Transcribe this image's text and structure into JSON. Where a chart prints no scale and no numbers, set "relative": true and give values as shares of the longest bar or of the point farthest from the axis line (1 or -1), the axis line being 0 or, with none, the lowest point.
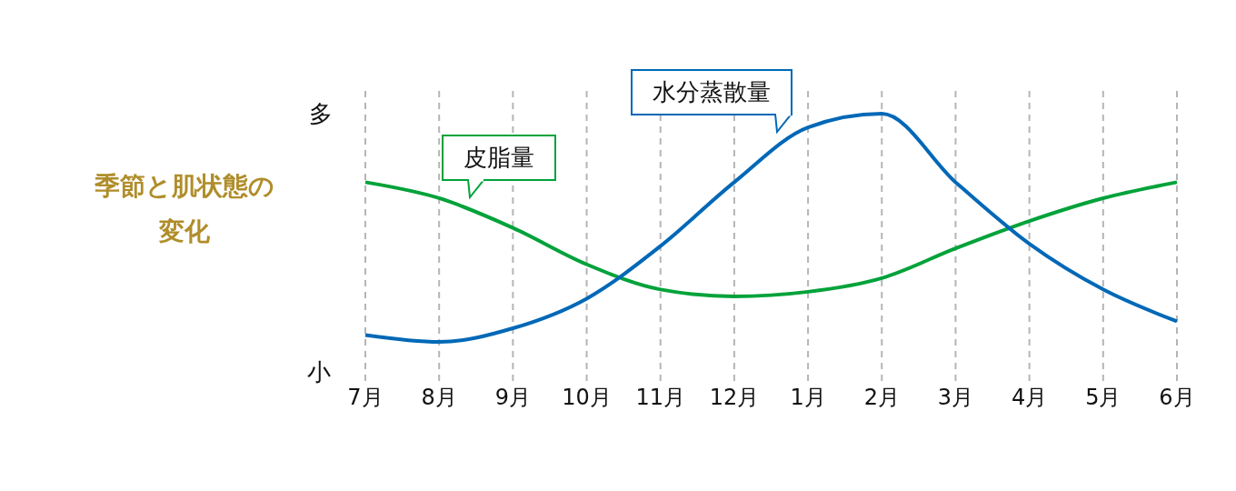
{
  "chart_data": {
    "type": "line",
    "title": "季節と肌状態の変化",
    "relative": true,
    "categories": [
      "7月",
      "8月",
      "9月",
      "10月",
      "11月",
      "12月",
      "1月",
      "2月",
      "3月",
      "4月",
      "5月",
      "6月"
    ],
    "series": [
      {
        "name": "皮脂量",
        "color": "#00a23a",
        "values": [
          0.7,
          0.63,
          0.5,
          0.34,
          0.23,
          0.2,
          0.22,
          0.28,
          0.41,
          0.53,
          0.63,
          0.7
        ]
      },
      {
        "name": "水分蒸散量",
        "color": "#0068b7",
        "values": [
          0.03,
          0,
          0.06,
          0.19,
          0.42,
          0.7,
          0.94,
          1,
          0.7,
          0.43,
          0.23,
          0.09
        ]
      }
    ],
    "annotations": [
      "多",
      "小"
    ],
    "grid": "x",
    "legend": false,
    "marker": "none",
    "line_style": "solid"
  }
}
